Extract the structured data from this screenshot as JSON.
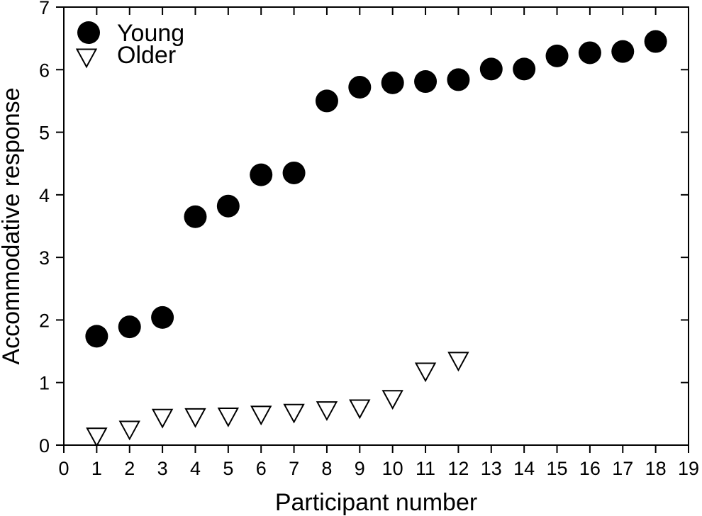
{
  "chart_data": {
    "type": "scatter",
    "title": "",
    "xlabel": "Participant number",
    "ylabel": "Accommodative response",
    "xlim": [
      0,
      19
    ],
    "ylim": [
      0,
      7
    ],
    "xticks": [
      "0",
      "1",
      "2",
      "3",
      "4",
      "5",
      "6",
      "7",
      "8",
      "9",
      "10",
      "11",
      "12",
      "13",
      "14",
      "15",
      "16",
      "17",
      "18",
      "19"
    ],
    "yticks": [
      "0",
      "1",
      "2",
      "3",
      "4",
      "5",
      "6",
      "7"
    ],
    "grid": false,
    "legend_position": "top-left",
    "series": [
      {
        "name": "Young",
        "marker": "filled-circle",
        "color": "#000000",
        "x": [
          1,
          2,
          3,
          4,
          5,
          6,
          7,
          8,
          9,
          10,
          11,
          12,
          13,
          14,
          15,
          16,
          17,
          18
        ],
        "y": [
          1.74,
          1.89,
          2.04,
          3.65,
          3.82,
          4.32,
          4.35,
          5.5,
          5.72,
          5.79,
          5.81,
          5.84,
          6.01,
          6.01,
          6.22,
          6.27,
          6.29,
          6.45
        ]
      },
      {
        "name": "Older",
        "marker": "open-triangle-down",
        "color": "#000000",
        "x": [
          1,
          2,
          3,
          4,
          5,
          6,
          7,
          8,
          9,
          10,
          11,
          12
        ],
        "y": [
          0.15,
          0.26,
          0.45,
          0.46,
          0.47,
          0.5,
          0.53,
          0.57,
          0.6,
          0.75,
          1.19,
          1.36
        ]
      }
    ]
  }
}
